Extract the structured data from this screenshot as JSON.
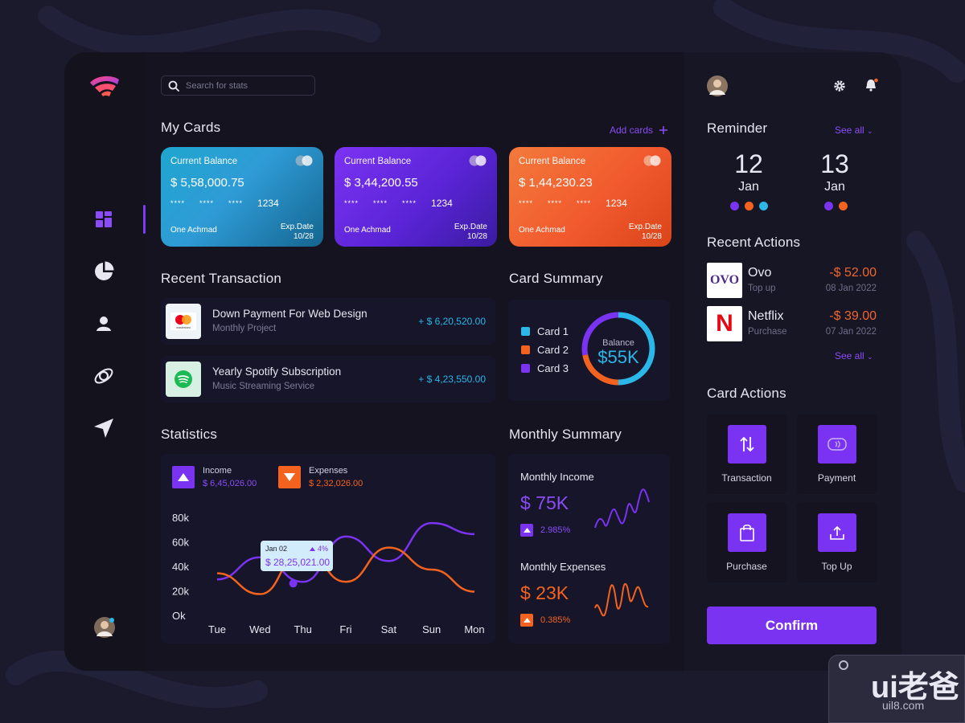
{
  "search": {
    "placeholder": "Search for stats"
  },
  "my_cards": {
    "title": "My Cards",
    "add_label": "Add cards",
    "add_icon": "plus-icon",
    "cards": [
      {
        "label": "Current Balance",
        "amount": "$ 5,58,000.75",
        "masked": [
          "****",
          "****",
          "****"
        ],
        "last4": "1234",
        "holder": "One Achmad",
        "exp_label": "Exp.Date",
        "exp": "10/28"
      },
      {
        "label": "Current Balance",
        "amount": "$ 3,44,200.55",
        "masked": [
          "****",
          "****",
          "****"
        ],
        "last4": "1234",
        "holder": "One Achmad",
        "exp_label": "Exp.Date",
        "exp": "10/28"
      },
      {
        "label": "Current Balance",
        "amount": "$ 1,44,230.23",
        "masked": [
          "****",
          "****",
          "****"
        ],
        "last4": "1234",
        "holder": "One Achmad",
        "exp_label": "Exp.Date",
        "exp": "10/28"
      }
    ]
  },
  "recent_transaction": {
    "title": "Recent Transaction",
    "items": [
      {
        "title": "Down Payment For Web Design",
        "subtitle": "Monthly Project",
        "amount": "+ $ 6,20,520.00",
        "icon": "mastercard-icon",
        "brand_text": "mastercard"
      },
      {
        "title": "Yearly Spotify Subscription",
        "subtitle": "Music Streaming Service",
        "amount": "+ $ 4,23,550.00",
        "icon": "spotify-icon"
      }
    ]
  },
  "card_summary": {
    "title": "Card Summary",
    "legend": [
      {
        "label": "Card 1",
        "color": "#2bb7e8"
      },
      {
        "label": "Card 2",
        "color": "#f3631f"
      },
      {
        "label": "Card 3",
        "color": "#7b33f2"
      }
    ],
    "center_label": "Balance",
    "center_value": "$55K",
    "ring_fractions": [
      0.5,
      0.22,
      0.28
    ]
  },
  "statistics": {
    "title": "Statistics",
    "income": {
      "label": "Income",
      "value": "$ 6,45,026.00",
      "color": "#7b33f2",
      "icon": "arrow-up-icon"
    },
    "expenses": {
      "label": "Expenses",
      "value": "$ 2,32,026.00",
      "color": "#f3631f",
      "icon": "arrow-down-icon"
    },
    "tooltip": {
      "date": "Jan 02",
      "pct": "4%",
      "value": "$ 28,25,021.00"
    }
  },
  "chart_data": {
    "type": "line",
    "categories": [
      "Tue",
      "Wed",
      "Thu",
      "Fri",
      "Sat",
      "Sun",
      "Mon"
    ],
    "y_ticks": [
      "80k",
      "60k",
      "40k",
      "20k",
      "Ok"
    ],
    "ylim": [
      0,
      80000
    ],
    "series": [
      {
        "name": "Income",
        "color": "#7b33f2",
        "values": [
          30000,
          48000,
          28000,
          65000,
          45000,
          76000,
          67000
        ]
      },
      {
        "name": "Expenses",
        "color": "#f3631f",
        "values": [
          35000,
          18000,
          55000,
          28000,
          56000,
          38000,
          20000
        ]
      }
    ],
    "grid": false
  },
  "monthly_summary": {
    "title": "Monthly Summary",
    "income": {
      "label": "Monthly Income",
      "value": "$ 75K",
      "pct": "2.985%",
      "color": "#7b33f2"
    },
    "expenses": {
      "label": "Monthly Expenses",
      "value": "$ 23K",
      "pct": "0.385%",
      "color": "#f3631f"
    }
  },
  "reminder": {
    "title": "Reminder",
    "see_all": "See all",
    "dates": [
      {
        "day": "12",
        "month": "Jan",
        "dots": [
          "#7b33f2",
          "#f3631f",
          "#2bb7e8"
        ]
      },
      {
        "day": "13",
        "month": "Jan",
        "dots": [
          "#7b33f2",
          "#f3631f"
        ]
      }
    ]
  },
  "recent_actions": {
    "title": "Recent Actions",
    "see_all": "See all",
    "items": [
      {
        "name": "Ovo",
        "sub": "Top up",
        "amount": "-$ 52.00",
        "date": "08 Jan 2022",
        "logo_text": "OVO",
        "icon": "ovo-logo-icon"
      },
      {
        "name": "Netflix",
        "sub": "Purchase",
        "amount": "-$ 39.00",
        "date": "07 Jan 2022",
        "logo_text": "N",
        "icon": "netflix-logo-icon"
      }
    ]
  },
  "card_actions": {
    "title": "Card Actions",
    "items": [
      {
        "label": "Transaction",
        "icon": "transfer-arrows-icon"
      },
      {
        "label": "Payment",
        "icon": "contactless-card-icon"
      },
      {
        "label": "Purchase",
        "icon": "shopping-bag-icon"
      },
      {
        "label": "Top Up",
        "icon": "upload-icon"
      }
    ]
  },
  "confirm_label": "Confirm",
  "watermark": {
    "main": "ui老爸",
    "url": "uil8.com"
  },
  "colors": {
    "accent": "#7b33f2",
    "orange": "#f3631f",
    "cyan": "#2bb7e8",
    "background": "#14131f"
  }
}
